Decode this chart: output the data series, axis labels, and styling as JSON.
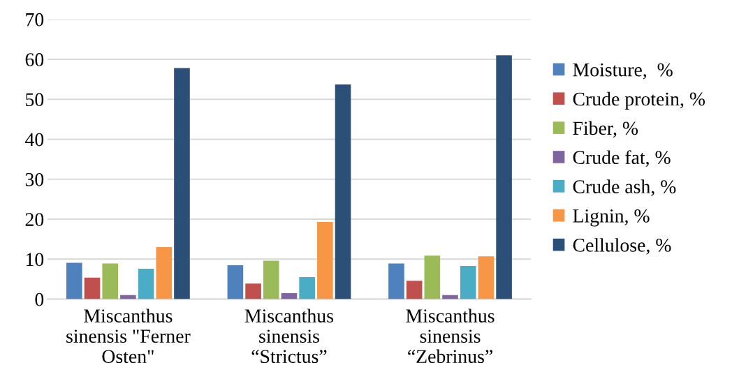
{
  "chart_data": {
    "type": "bar",
    "categories": [
      "Miscanthus\nsinensis \"Ferner\nOsten\"",
      "Miscanthus\nsinensis\n“Strictus”",
      "Miscanthus\nsinensis\n“Zebrinus”"
    ],
    "series": [
      {
        "name": "Moisture,  %",
        "color": "#4f81bd",
        "values": [
          9.1,
          8.5,
          8.9
        ]
      },
      {
        "name": "Crude protein, %",
        "color": "#c0504d",
        "values": [
          5.4,
          3.9,
          4.6
        ]
      },
      {
        "name": "Fiber, %",
        "color": "#9bbb59",
        "values": [
          8.9,
          9.6,
          10.9
        ]
      },
      {
        "name": "Crude fat, %",
        "color": "#8064a2",
        "values": [
          1.0,
          1.5,
          1.0
        ]
      },
      {
        "name": "Crude ash, %",
        "color": "#4bacc6",
        "values": [
          7.6,
          5.5,
          8.3
        ]
      },
      {
        "name": "Lignin, %",
        "color": "#f79646",
        "values": [
          13.0,
          19.3,
          10.7
        ]
      },
      {
        "name": "Cellulose, %",
        "color": "#2c4f78",
        "values": [
          57.8,
          53.7,
          61.0
        ]
      }
    ],
    "ylim": [
      0,
      70
    ],
    "yticks": [
      0,
      10,
      20,
      30,
      40,
      50,
      60,
      70
    ],
    "grid": "y",
    "legend": "right"
  }
}
